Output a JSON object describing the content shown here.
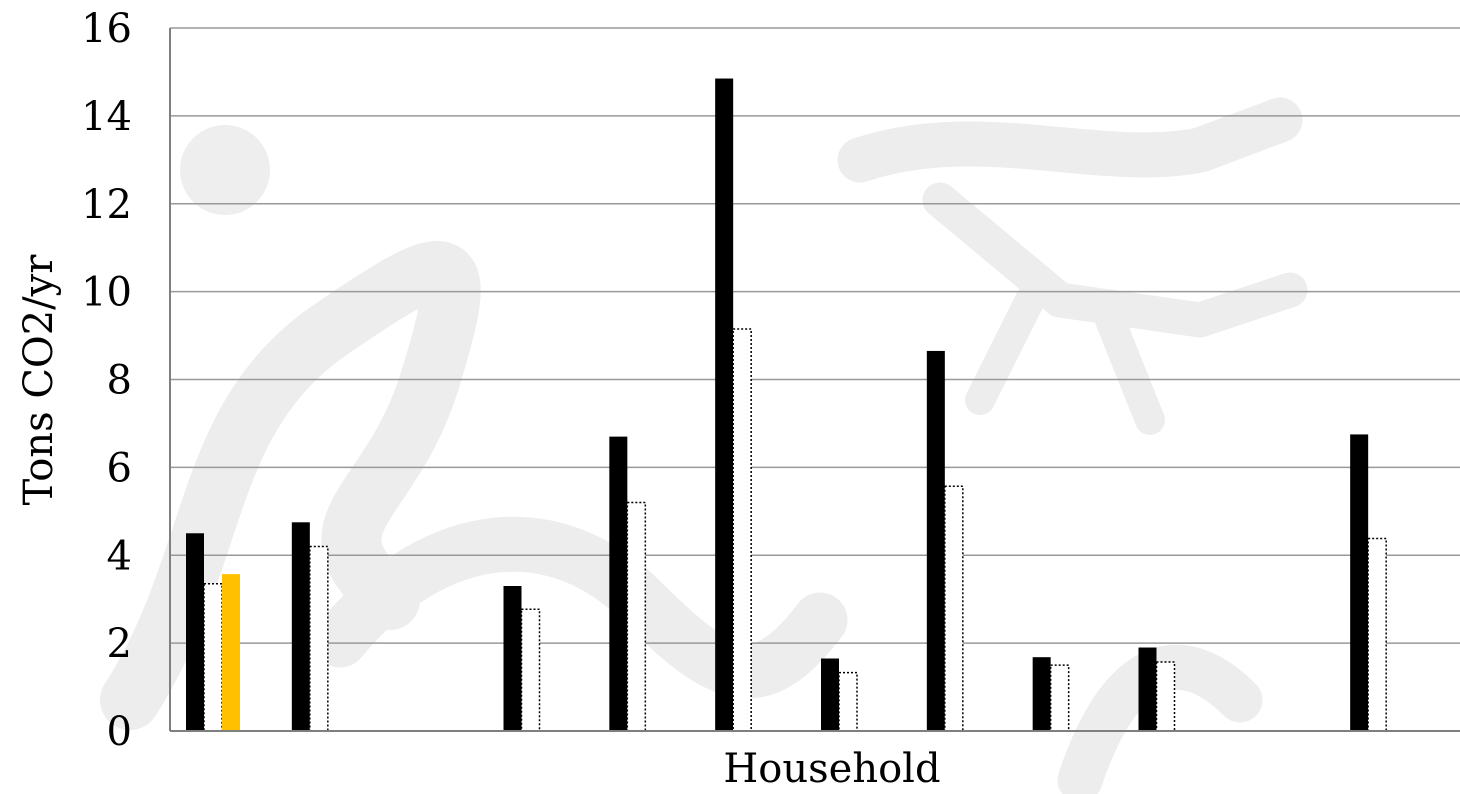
{
  "chart_data": {
    "type": "bar",
    "title": "",
    "xlabel": "Household",
    "ylabel": "Tons CO2/yr",
    "ylim": [
      0,
      16
    ],
    "yticks": [
      0,
      2,
      4,
      6,
      8,
      10,
      12,
      14,
      16
    ],
    "grid": "horizontal",
    "legend": "none",
    "categories": [
      "",
      "",
      "",
      "",
      "",
      "",
      "",
      "",
      "",
      "",
      "",
      ""
    ],
    "series": [
      {
        "values": [
          4.5,
          4.75,
          null,
          3.3,
          6.7,
          14.85,
          1.65,
          8.65,
          1.68,
          1.9,
          null,
          6.75
        ],
        "fill": "#000000",
        "style": "solid"
      },
      {
        "values": [
          3.35,
          4.2,
          null,
          2.77,
          5.2,
          9.15,
          1.33,
          5.57,
          1.5,
          1.57,
          null,
          4.38
        ],
        "fill": "#ffffff",
        "style": "dotted-outline"
      },
      {
        "values": [
          3.57,
          null,
          null,
          null,
          null,
          null,
          null,
          null,
          null,
          null,
          null,
          null
        ],
        "fill": "#FFC000",
        "style": "solid"
      }
    ],
    "colors": {
      "grid": "#999999",
      "axis": "#7f7f7f",
      "watermark": "#eeeeee"
    }
  }
}
